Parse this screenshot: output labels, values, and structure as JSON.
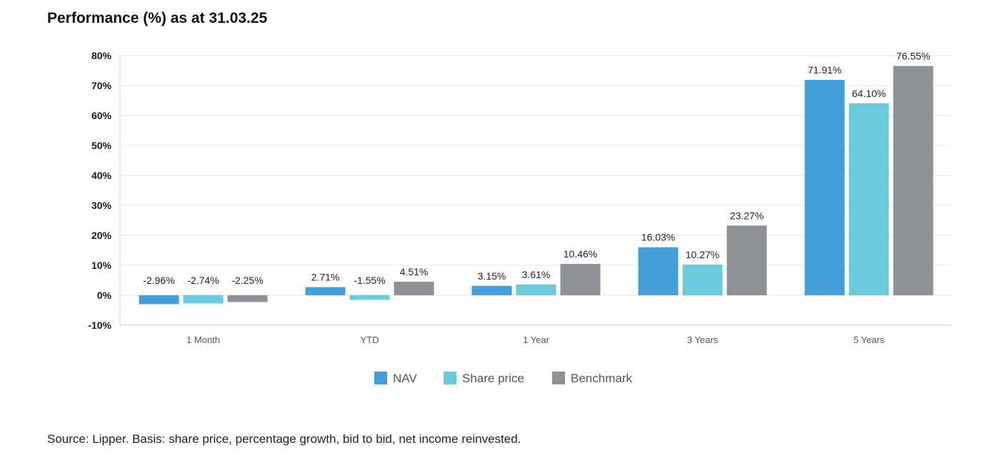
{
  "title": "Performance (%) as at 31.03.25",
  "source": "Source: Lipper. Basis: share price, percentage growth, bid to bid, net income reinvested.",
  "chart_data": {
    "type": "bar",
    "categories": [
      "1 Month",
      "YTD",
      "1 Year",
      "3 Years",
      "5 Years"
    ],
    "series": [
      {
        "name": "NAV",
        "color": "#429fdb",
        "values": [
          -2.96,
          2.71,
          3.15,
          16.03,
          71.91
        ],
        "labels": [
          "-2.96%",
          "2.71%",
          "3.15%",
          "16.03%",
          "71.91%"
        ]
      },
      {
        "name": "Share price",
        "color": "#69cadd",
        "values": [
          -2.74,
          -1.55,
          3.61,
          10.27,
          64.1
        ],
        "labels": [
          "-2.74%",
          "-1.55%",
          "3.61%",
          "10.27%",
          "64.10%"
        ]
      },
      {
        "name": "Benchmark",
        "color": "#8e9196",
        "values": [
          -2.25,
          4.51,
          10.46,
          23.27,
          76.55
        ],
        "labels": [
          "-2.25%",
          "4.51%",
          "10.46%",
          "23.27%",
          "76.55%"
        ]
      }
    ],
    "yticks": [
      "80%",
      "70%",
      "60%",
      "50%",
      "40%",
      "30%",
      "20%",
      "10%",
      "0%",
      "-10%"
    ],
    "ylim": [
      -10,
      80
    ],
    "grid": true,
    "legend": "bottom-center"
  }
}
